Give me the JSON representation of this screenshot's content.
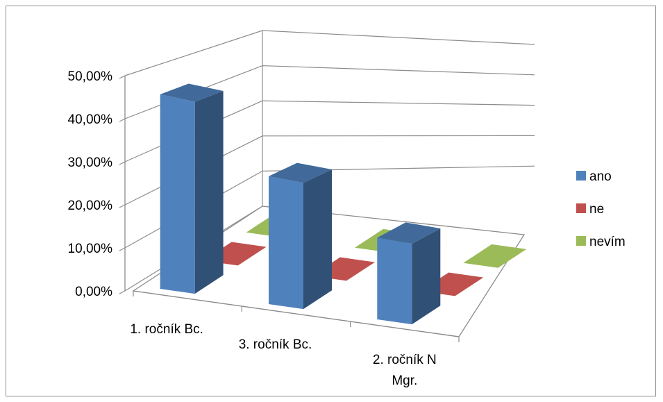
{
  "chart_data": {
    "type": "bar",
    "categories": [
      "1. ročník Bc.",
      "3. ročník Bc.",
      "2. ročník N Mgr."
    ],
    "series": [
      {
        "name": "ano",
        "values": [
          46.0,
          31.5,
          21.0
        ],
        "color": "#4f81bd"
      },
      {
        "name": "ne",
        "values": [
          0,
          0,
          0
        ],
        "color": "#c0504d"
      },
      {
        "name": "nevím",
        "values": [
          0,
          0,
          0
        ],
        "color": "#9bbb59"
      }
    ],
    "yticks": [
      "0,00%",
      "10,00%",
      "20,00%",
      "30,00%",
      "40,00%",
      "50,00%"
    ],
    "ylim": [
      0,
      50
    ],
    "grid": true,
    "legend": "right"
  }
}
